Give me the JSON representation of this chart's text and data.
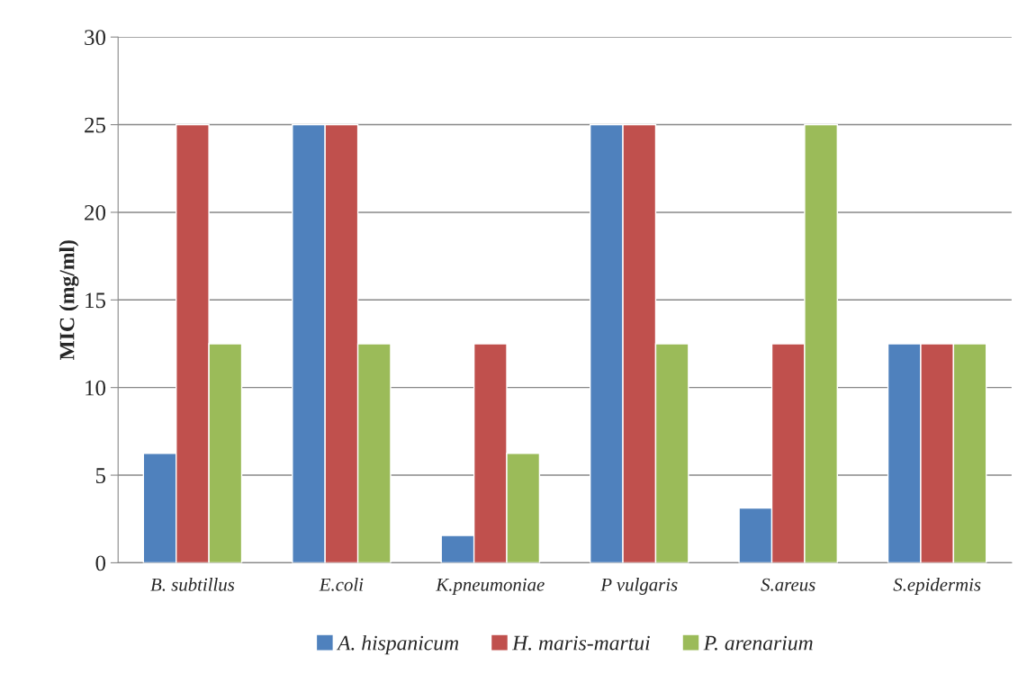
{
  "chart_data": {
    "type": "bar",
    "ylabel": "MIC (mg/ml)",
    "categories": [
      "B. subtillus",
      "E.coli",
      "K.pneumoniae",
      "P vulgaris",
      "S.areus",
      "S.epidermis"
    ],
    "series": [
      {
        "name": "A. hispanicum",
        "color": "#4f81bd",
        "values": [
          6.25,
          25,
          1.56,
          25,
          3.13,
          12.5
        ]
      },
      {
        "name": "H. maris-martui",
        "color": "#c0504d",
        "values": [
          25,
          25,
          12.5,
          25,
          12.5,
          12.5
        ]
      },
      {
        "name": "P. arenarium",
        "color": "#9bbb59",
        "values": [
          12.5,
          12.5,
          6.25,
          12.5,
          25,
          12.5
        ]
      }
    ],
    "ylim": [
      0,
      30
    ],
    "yticks": [
      0,
      5,
      10,
      15,
      20,
      25,
      30
    ],
    "grid": "y",
    "legend": "bottom"
  }
}
